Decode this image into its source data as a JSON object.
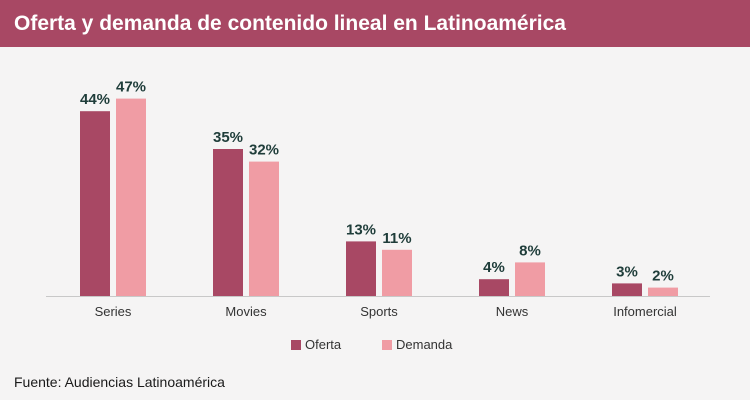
{
  "header": {
    "title": "Oferta y demanda de contenido lineal en Latinoamérica"
  },
  "footer": {
    "source": "Fuente: Audiencias Latinoamérica"
  },
  "colors": {
    "title_bar": "#a84864",
    "oferta": "#a84864",
    "demanda": "#f09ca4",
    "value_text": "#1f3d3a",
    "background": "#f5f4f4"
  },
  "chart_data": {
    "type": "bar",
    "categories": [
      "Series",
      "Movies",
      "Sports",
      "News",
      "Infomercial"
    ],
    "series": [
      {
        "name": "Oferta",
        "values": [
          44,
          35,
          13,
          4,
          3
        ],
        "labels": [
          "44%",
          "35%",
          "13%",
          "4%",
          "3%"
        ]
      },
      {
        "name": "Demanda",
        "values": [
          47,
          32,
          11,
          8,
          2
        ],
        "labels": [
          "47%",
          "32%",
          "11%",
          "8%",
          "2%"
        ]
      }
    ],
    "ylim": [
      0,
      50
    ],
    "unit": "%",
    "grid": false,
    "legend_position": "bottom-center"
  }
}
